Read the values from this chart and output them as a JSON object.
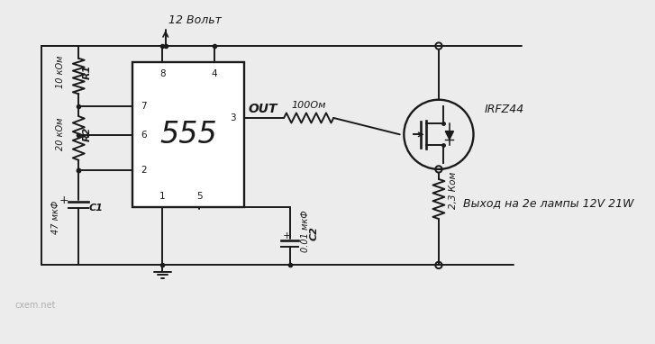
{
  "bg_color": "#ececec",
  "line_color": "#1a1a1a",
  "voltage_label": "12 Вольт",
  "irfz_label": "IRFZ44",
  "out_label": "OUT",
  "r1_label": "R1",
  "r2_label": "R2",
  "c1_label": "C1",
  "c2_label": "C2",
  "r1_val": "10 кОм",
  "r2_val": "20 кОм",
  "c1_val": "47 мкФ",
  "c2_val": "0.01 мкФ",
  "res_100_label": "100Ом",
  "res_23_label": "2,3 Ком",
  "ic_label": "555",
  "output_label": "Выход на 2е лампы 12V 21W",
  "watermark": "cxem.net"
}
